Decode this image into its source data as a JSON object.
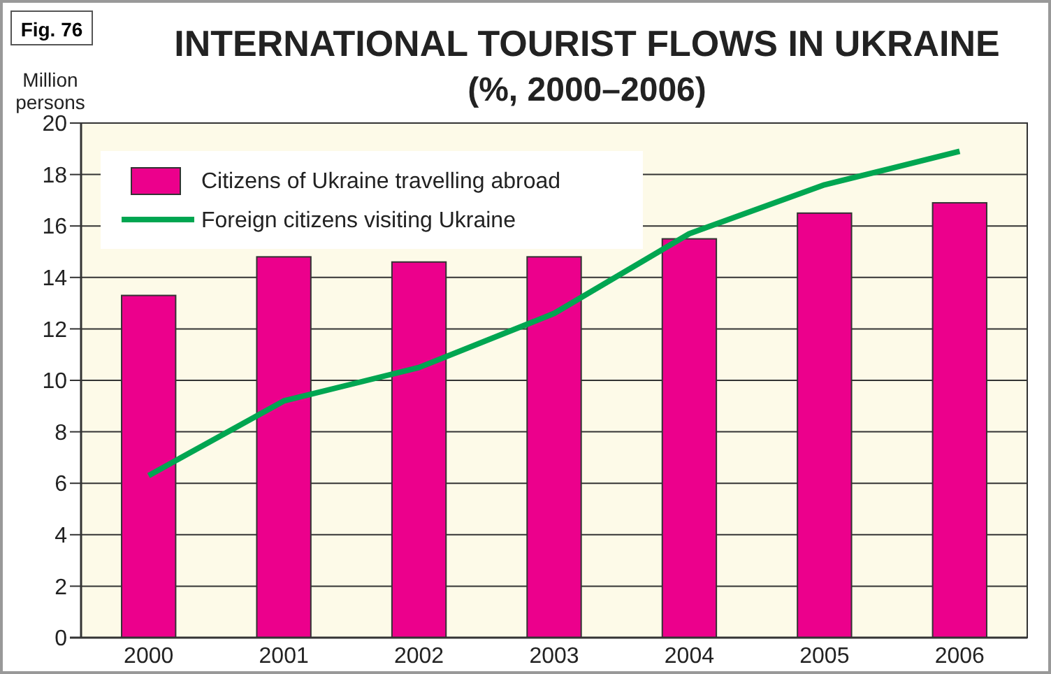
{
  "chart_data": {
    "type": "bar",
    "title": "INTERNATIONAL TOURIST FLOWS IN UKRAINE",
    "subtitle": "(%, 2000–2006)",
    "ylabel": "Million persons",
    "annotations": [
      "Fig. 76"
    ],
    "categories": [
      "2000",
      "2001",
      "2002",
      "2003",
      "2004",
      "2005",
      "2006"
    ],
    "series": [
      {
        "name": "Citizens of Ukraine travelling abroad",
        "color": "#ec008c",
        "values": [
          13.3,
          14.8,
          14.6,
          14.8,
          15.5,
          16.5,
          16.9
        ]
      },
      {
        "name": "Foreign citizens visiting Ukraine",
        "type": "line",
        "color": "#00a651",
        "values": [
          6.3,
          9.2,
          10.5,
          12.6,
          15.7,
          17.6,
          18.9
        ]
      }
    ],
    "ylim": [
      0,
      20
    ],
    "yticks": [
      0,
      2,
      4,
      6,
      8,
      10,
      12,
      14,
      16,
      18,
      20
    ],
    "grid": "y",
    "legend": "top left"
  }
}
